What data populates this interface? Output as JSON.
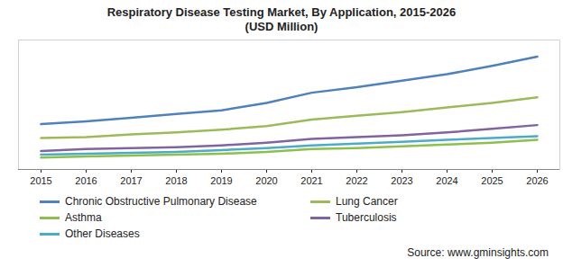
{
  "chart_data": {
    "type": "line",
    "title": "Respiratory Disease Testing Market, By Application, 2015-2026",
    "subtitle": "(USD Million)",
    "source": "Source: www.gminsights.com",
    "categories": [
      "2015",
      "2016",
      "2017",
      "2018",
      "2019",
      "2020",
      "2021",
      "2022",
      "2023",
      "2024",
      "2025",
      "2026"
    ],
    "series": [
      {
        "name": "Chronic Obstructive Pulmonary Disease",
        "color": "#4f81bd",
        "values": [
          49,
          52,
          56,
          60,
          64,
          72,
          83,
          89,
          96,
          103,
          112,
          122
        ]
      },
      {
        "name": "Lung Cancer",
        "color": "#9bbb59",
        "values": [
          34,
          35,
          38,
          40,
          43,
          47,
          54,
          58,
          62,
          67,
          72,
          78
        ]
      },
      {
        "name": "Asthma",
        "color": "#8cbf4d",
        "values": [
          13,
          14,
          15,
          16,
          17,
          19,
          22,
          23,
          25,
          27,
          29,
          32
        ]
      },
      {
        "name": "Tuberculosis",
        "color": "#8064a2",
        "values": [
          20,
          22,
          23,
          24,
          26,
          29,
          33,
          35,
          37,
          40,
          44,
          48
        ]
      },
      {
        "name": "Other Diseases",
        "color": "#4bacc6",
        "values": [
          16,
          17,
          18,
          19,
          21,
          23,
          26,
          28,
          30,
          32,
          34,
          36
        ]
      }
    ],
    "ylim": [
      0,
      140
    ],
    "tick_labels": "x",
    "grid": false,
    "legend": "bottom"
  }
}
